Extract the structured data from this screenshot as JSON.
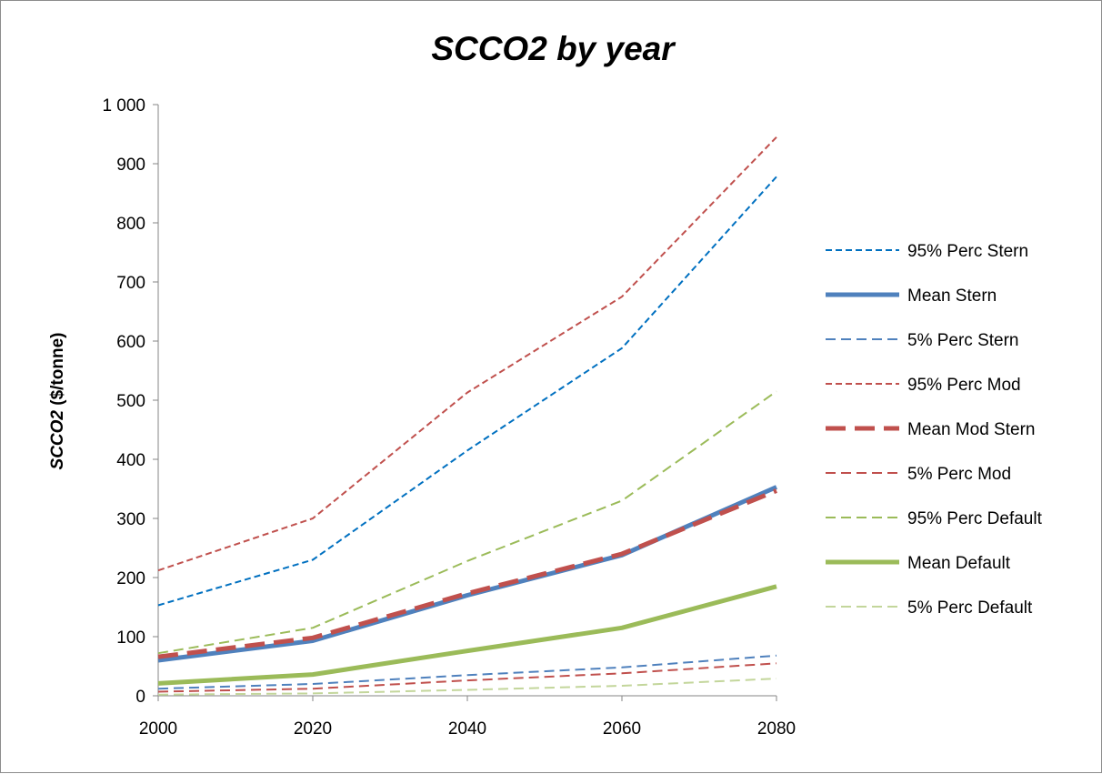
{
  "chart_data": {
    "type": "line",
    "title": "SCCO2 by year",
    "xlabel": "",
    "ylabel": "SCCO2 ($/tonne)",
    "ylabel_bold_part": "SCCO2",
    "ylabel_rest": " ($/tonne)",
    "x": [
      2000,
      2020,
      2040,
      2060,
      2080
    ],
    "xlim": [
      2000,
      2080
    ],
    "ylim": [
      0,
      1000
    ],
    "y_ticks": [
      0,
      100,
      200,
      300,
      400,
      500,
      600,
      700,
      800,
      900,
      1000
    ],
    "y_tick_labels": [
      "0",
      "100",
      "200",
      "300",
      "400",
      "500",
      "600",
      "700",
      "800",
      "900",
      "1 000"
    ],
    "x_tick_labels": [
      "2000",
      "2020",
      "2040",
      "2060",
      "2080"
    ],
    "grid": false,
    "legend_position": "right",
    "series": [
      {
        "name": "95% Perc Stern",
        "x": [
          2000,
          2020,
          2040,
          2060,
          2080
        ],
        "values": [
          153,
          230,
          415,
          588,
          878
        ],
        "color": "#0070c0",
        "style": "dash",
        "width": 2
      },
      {
        "name": "Mean Stern",
        "x": [
          2000,
          2020,
          2040,
          2060,
          2080
        ],
        "values": [
          60,
          93,
          170,
          238,
          353
        ],
        "color": "#4f81bd",
        "style": "solid",
        "width": 5
      },
      {
        "name": "5% Perc Stern",
        "x": [
          2000,
          2020,
          2040,
          2060,
          2080
        ],
        "values": [
          12,
          20,
          35,
          48,
          68
        ],
        "color": "#4f81bd",
        "style": "longdash",
        "width": 2
      },
      {
        "name": "95% Perc Mod",
        "x": [
          2000,
          2020,
          2040,
          2060,
          2080
        ],
        "values": [
          212,
          300,
          513,
          675,
          945
        ],
        "color": "#c0504d",
        "style": "dash",
        "width": 2
      },
      {
        "name": "Mean Mod Stern",
        "x": [
          2000,
          2020,
          2040,
          2060,
          2080
        ],
        "values": [
          66,
          98,
          173,
          240,
          347
        ],
        "color": "#c0504d",
        "style": "longdash",
        "width": 5
      },
      {
        "name": "5% Perc Mod",
        "x": [
          2000,
          2020,
          2040,
          2060,
          2080
        ],
        "values": [
          7,
          12,
          26,
          38,
          55
        ],
        "color": "#c0504d",
        "style": "longdash",
        "width": 2
      },
      {
        "name": "95% Perc Default",
        "x": [
          2000,
          2020,
          2040,
          2060,
          2080
        ],
        "values": [
          72,
          115,
          228,
          330,
          515
        ],
        "color": "#9bbb59",
        "style": "longdash",
        "width": 2
      },
      {
        "name": "Mean Default",
        "x": [
          2000,
          2020,
          2040,
          2060,
          2080
        ],
        "values": [
          21,
          36,
          76,
          115,
          185
        ],
        "color": "#9bbb59",
        "style": "solid",
        "width": 5
      },
      {
        "name": "5% Perc Default",
        "x": [
          2000,
          2020,
          2040,
          2060,
          2080
        ],
        "values": [
          2,
          4,
          10,
          17,
          29
        ],
        "color": "#c3d69b",
        "style": "longdash",
        "width": 2
      }
    ]
  }
}
